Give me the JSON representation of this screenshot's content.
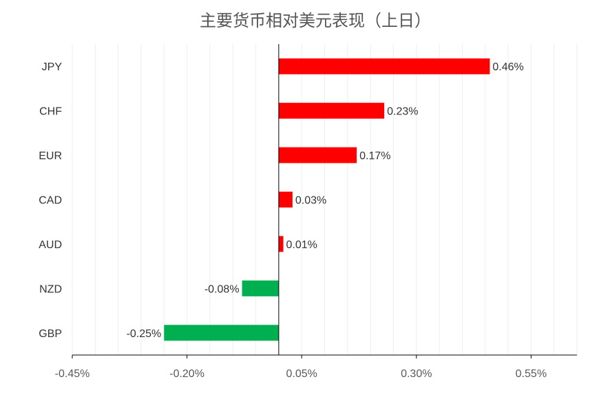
{
  "chart_data": {
    "type": "bar",
    "orientation": "horizontal",
    "title": "主要货币相对美元表现（上日）",
    "xlabel": "",
    "ylabel": "",
    "categories": [
      "JPY",
      "CHF",
      "EUR",
      "CAD",
      "AUD",
      "NZD",
      "GBP"
    ],
    "values": [
      0.46,
      0.23,
      0.17,
      0.03,
      0.01,
      -0.08,
      -0.25
    ],
    "value_labels": [
      "0.46%",
      "0.23%",
      "0.17%",
      "0.03%",
      "0.01%",
      "-0.08%",
      "-0.25%"
    ],
    "xlim": [
      -0.45,
      0.65
    ],
    "x_ticks": [
      -0.45,
      -0.2,
      0.05,
      0.3,
      0.55
    ],
    "x_tick_labels": [
      "-0.45%",
      "-0.20%",
      "0.05%",
      "0.30%",
      "0.55%"
    ],
    "grid": true,
    "legend": "none",
    "colors": {
      "positive": "#ff0000",
      "negative": "#00b050",
      "grid": "#eeeeee",
      "axis": "#000000"
    }
  }
}
